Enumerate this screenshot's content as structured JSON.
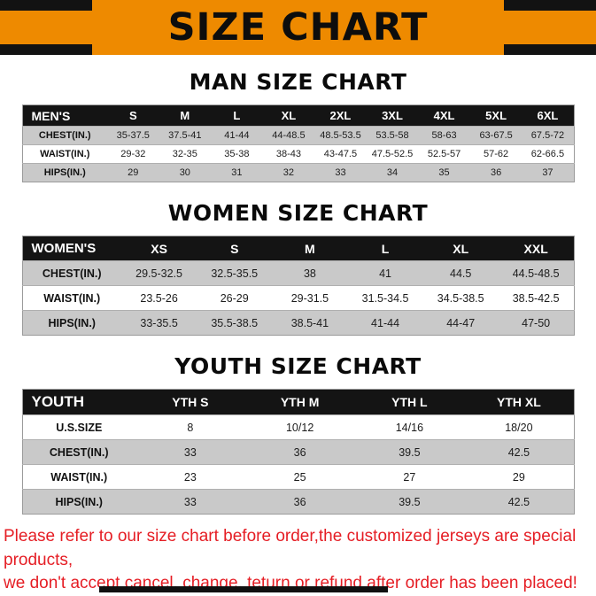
{
  "banner": {
    "title": "SIZE CHART"
  },
  "colors": {
    "banner_bg": "#EE8A00",
    "banner_corner": "#121212",
    "table_header_bg": "#141414",
    "table_header_text": "#FFFFFF",
    "shaded_row": "#C9C9C9",
    "notice_text": "#E51D24"
  },
  "sections": [
    {
      "heading": "MAN SIZE CHART",
      "table": {
        "header": [
          "MEN'S",
          "S",
          "M",
          "L",
          "XL",
          "2XL",
          "3XL",
          "4XL",
          "5XL",
          "6XL"
        ],
        "rows": [
          {
            "label": "CHEST(IN.)",
            "values": [
              "35-37.5",
              "37.5-41",
              "41-44",
              "44-48.5",
              "48.5-53.5",
              "53.5-58",
              "58-63",
              "63-67.5",
              "67.5-72"
            ]
          },
          {
            "label": "WAIST(IN.)",
            "values": [
              "29-32",
              "32-35",
              "35-38",
              "38-43",
              "43-47.5",
              "47.5-52.5",
              "52.5-57",
              "57-62",
              "62-66.5"
            ]
          },
          {
            "label": "HIPS(IN.)",
            "values": [
              "29",
              "30",
              "31",
              "32",
              "33",
              "34",
              "35",
              "36",
              "37"
            ]
          }
        ]
      }
    },
    {
      "heading": "WOMEN SIZE CHART",
      "table": {
        "header": [
          "WOMEN'S",
          "XS",
          "S",
          "M",
          "L",
          "XL",
          "XXL"
        ],
        "rows": [
          {
            "label": "CHEST(IN.)",
            "values": [
              "29.5-32.5",
              "32.5-35.5",
              "38",
              "41",
              "44.5",
              "44.5-48.5"
            ]
          },
          {
            "label": "WAIST(IN.)",
            "values": [
              "23.5-26",
              "26-29",
              "29-31.5",
              "31.5-34.5",
              "34.5-38.5",
              "38.5-42.5"
            ]
          },
          {
            "label": "HIPS(IN.)",
            "values": [
              "33-35.5",
              "35.5-38.5",
              "38.5-41",
              "41-44",
              "44-47",
              "47-50"
            ]
          }
        ]
      }
    },
    {
      "heading": "YOUTH SIZE CHART",
      "table": {
        "header": [
          "YOUTH",
          "YTH S",
          "YTH M",
          "YTH L",
          "YTH XL"
        ],
        "rows": [
          {
            "label": "U.S.SIZE",
            "values": [
              "8",
              "10/12",
              "14/16",
              "18/20"
            ]
          },
          {
            "label": "CHEST(IN.)",
            "values": [
              "33",
              "36",
              "39.5",
              "42.5"
            ]
          },
          {
            "label": "WAIST(IN.)",
            "values": [
              "23",
              "25",
              "27",
              "29"
            ]
          },
          {
            "label": "HIPS(IN.)",
            "values": [
              "33",
              "36",
              "39.5",
              "42.5"
            ]
          }
        ]
      }
    }
  ],
  "footer": {
    "lines": [
      "Please refer to our size chart before order,the customized jerseys are special products,",
      "we don't accept cancel, change, teturn or refund after order has been placed!"
    ]
  }
}
